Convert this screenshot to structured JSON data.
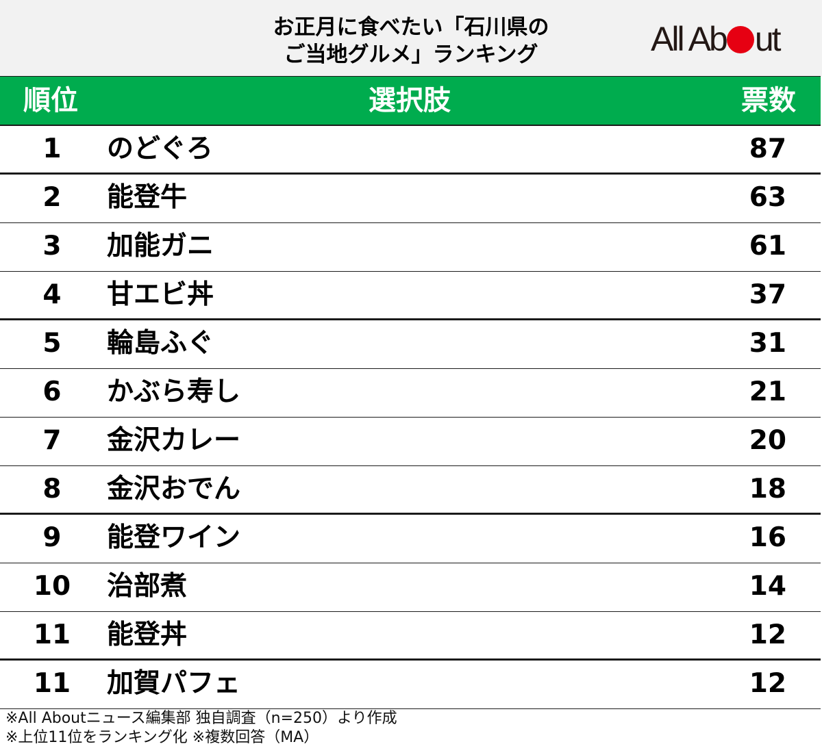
{
  "title": {
    "line1": "お正月に食べたい「石川県の",
    "line2": "ご当地グルメ」ランキング"
  },
  "logo": {
    "text_before": "All Ab",
    "text_after": "ut",
    "dot_color": "#e60012"
  },
  "colors": {
    "header_green": "#00ac4e",
    "title_band": "#f2f2f2"
  },
  "table": {
    "headers": {
      "rank": "順位",
      "choice": "選択肢",
      "votes": "票数"
    },
    "rows": [
      {
        "rank": "1",
        "name": "のどぐろ",
        "votes": "87"
      },
      {
        "rank": "2",
        "name": "能登牛",
        "votes": "63"
      },
      {
        "rank": "3",
        "name": "加能ガニ",
        "votes": "61"
      },
      {
        "rank": "4",
        "name": "甘エビ丼",
        "votes": "37"
      },
      {
        "rank": "5",
        "name": "輪島ふぐ",
        "votes": "31"
      },
      {
        "rank": "6",
        "name": "かぶら寿し",
        "votes": "21"
      },
      {
        "rank": "7",
        "name": "金沢カレー",
        "votes": "20"
      },
      {
        "rank": "8",
        "name": "金沢おでん",
        "votes": "18"
      },
      {
        "rank": "9",
        "name": "能登ワイン",
        "votes": "16"
      },
      {
        "rank": "10",
        "name": "治部煮",
        "votes": "14"
      },
      {
        "rank": "11",
        "name": "能登丼",
        "votes": "12"
      },
      {
        "rank": "11",
        "name": "加賀パフェ",
        "votes": "12"
      }
    ]
  },
  "footer": {
    "line1": "※All Aboutニュース編集部 独自調査（n=250）より作成",
    "line2": "※上位11位をランキング化 ※複数回答（MA）"
  }
}
